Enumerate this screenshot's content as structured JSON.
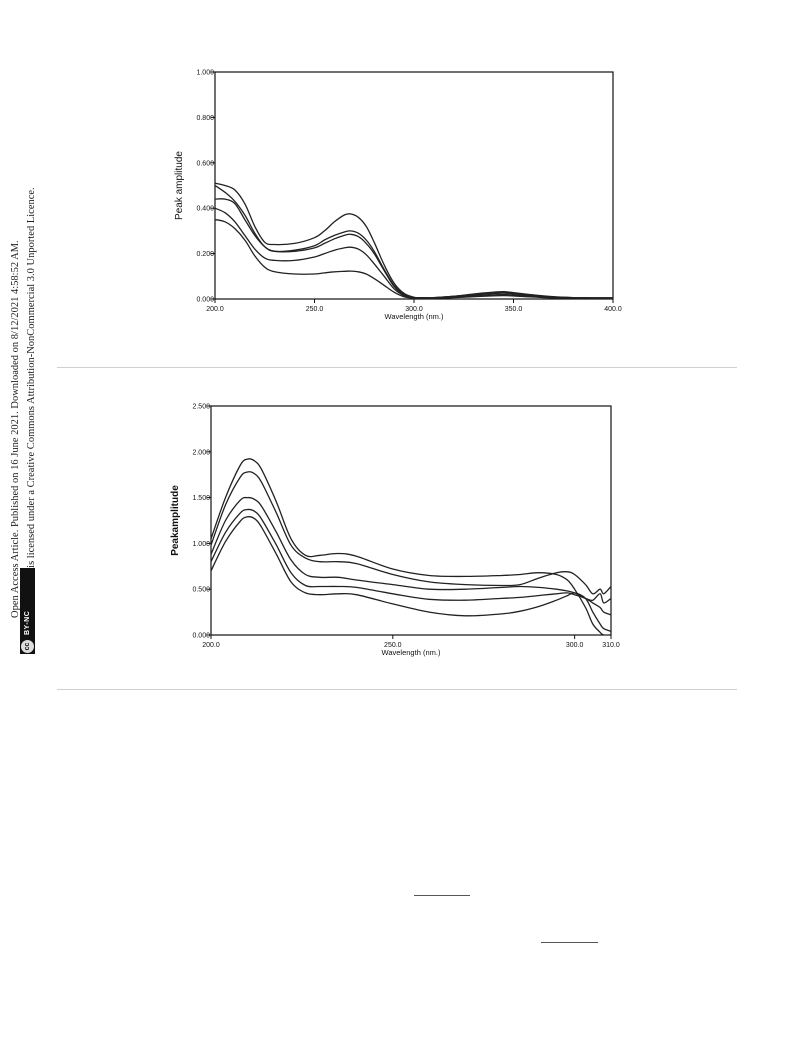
{
  "sidebar": {
    "line1": "Open Access Article. Published on 16 June 2021. Downloaded on 8/12/2021 4:58:52 AM.",
    "line2": "This article is licensed under a Creative Commons Attribution-NonCommercial 3.0 Unported Licence.",
    "badge_cc": "cc",
    "badge_label": "BY-NC"
  },
  "chart_data": [
    {
      "type": "line",
      "xlabel": "Wavelength (nm.)",
      "ylabel": "Peak amplitude",
      "xlim": [
        200,
        400
      ],
      "ylim": [
        0,
        1
      ],
      "xticks": [
        "200.0",
        "250.0",
        "300.0",
        "350.0",
        "400.0"
      ],
      "yticks": [
        "0.000",
        "0.200",
        "0.400",
        "0.600",
        "0.800",
        "1.000"
      ],
      "grid": false,
      "series": [
        {
          "x": [
            200,
            205,
            210,
            215,
            220,
            225,
            230,
            240,
            250,
            255,
            260,
            265,
            268,
            272,
            276,
            280,
            285,
            290,
            295,
            300,
            305,
            310,
            320,
            330,
            340,
            345,
            350,
            360,
            370,
            380,
            390,
            400
          ],
          "values": [
            0.51,
            0.5,
            0.48,
            0.42,
            0.32,
            0.25,
            0.24,
            0.245,
            0.27,
            0.3,
            0.34,
            0.37,
            0.375,
            0.36,
            0.32,
            0.25,
            0.15,
            0.07,
            0.025,
            0.008,
            0.006,
            0.006,
            0.012,
            0.022,
            0.03,
            0.032,
            0.028,
            0.018,
            0.01,
            0.006,
            0.005,
            0.005
          ]
        },
        {
          "x": [
            200,
            205,
            210,
            215,
            220,
            225,
            230,
            240,
            250,
            255,
            260,
            265,
            268,
            272,
            276,
            280,
            285,
            290,
            295,
            300,
            305,
            310,
            320,
            330,
            340,
            345,
            350,
            360,
            370,
            380,
            390,
            400
          ],
          "values": [
            0.5,
            0.47,
            0.43,
            0.37,
            0.29,
            0.23,
            0.21,
            0.215,
            0.235,
            0.26,
            0.28,
            0.295,
            0.3,
            0.29,
            0.26,
            0.21,
            0.13,
            0.06,
            0.02,
            0.006,
            0.005,
            0.006,
            0.012,
            0.02,
            0.026,
            0.028,
            0.025,
            0.016,
            0.009,
            0.006,
            0.005,
            0.005
          ]
        },
        {
          "x": [
            200,
            205,
            210,
            215,
            220,
            225,
            230,
            240,
            250,
            255,
            260,
            265,
            268,
            272,
            276,
            280,
            285,
            290,
            295,
            300,
            305,
            310,
            320,
            330,
            340,
            345,
            350,
            360,
            370,
            380,
            390,
            400
          ],
          "values": [
            0.44,
            0.44,
            0.42,
            0.35,
            0.28,
            0.23,
            0.21,
            0.21,
            0.225,
            0.245,
            0.265,
            0.28,
            0.285,
            0.275,
            0.245,
            0.2,
            0.125,
            0.055,
            0.018,
            0.006,
            0.005,
            0.005,
            0.01,
            0.018,
            0.024,
            0.026,
            0.022,
            0.014,
            0.008,
            0.005,
            0.005,
            0.005
          ]
        },
        {
          "x": [
            200,
            205,
            210,
            215,
            220,
            225,
            230,
            240,
            250,
            255,
            260,
            265,
            268,
            272,
            276,
            280,
            285,
            290,
            295,
            300,
            305,
            310,
            320,
            330,
            340,
            345,
            350,
            360,
            370,
            380,
            390,
            400
          ],
          "values": [
            0.4,
            0.38,
            0.34,
            0.28,
            0.22,
            0.18,
            0.17,
            0.17,
            0.185,
            0.2,
            0.215,
            0.225,
            0.228,
            0.22,
            0.195,
            0.155,
            0.1,
            0.045,
            0.015,
            0.005,
            0.004,
            0.004,
            0.008,
            0.014,
            0.018,
            0.02,
            0.017,
            0.011,
            0.007,
            0.005,
            0.004,
            0.004
          ]
        },
        {
          "x": [
            200,
            205,
            210,
            215,
            220,
            225,
            230,
            240,
            250,
            255,
            260,
            265,
            268,
            272,
            276,
            280,
            285,
            290,
            295,
            300,
            305,
            310,
            320,
            330,
            340,
            345,
            350,
            360,
            370,
            380,
            390,
            400
          ],
          "values": [
            0.35,
            0.34,
            0.31,
            0.26,
            0.19,
            0.14,
            0.12,
            0.11,
            0.11,
            0.115,
            0.12,
            0.122,
            0.123,
            0.12,
            0.11,
            0.09,
            0.06,
            0.03,
            0.01,
            0.004,
            0.003,
            0.003,
            0.006,
            0.01,
            0.014,
            0.015,
            0.013,
            0.009,
            0.005,
            0.004,
            0.003,
            0.003
          ]
        }
      ]
    },
    {
      "type": "line",
      "xlabel": "Wavelength (nm.)",
      "ylabel": "Peakamplitude",
      "xlim": [
        200,
        310
      ],
      "ylim": [
        0,
        2.5
      ],
      "xticks": [
        "200.0",
        "250.0",
        "300.0",
        "310.0"
      ],
      "xtick_values": [
        200,
        250,
        300,
        310
      ],
      "yticks": [
        "0.000",
        "0.500",
        "1.000",
        "1.500",
        "2.000",
        "2.500"
      ],
      "grid": false,
      "series": [
        {
          "x": [
            200,
            204,
            208,
            210,
            212,
            214,
            218,
            222,
            226,
            230,
            235,
            240,
            250,
            260,
            270,
            280,
            285,
            290,
            295,
            298,
            300,
            303,
            305,
            307,
            308,
            310
          ],
          "values": [
            1.05,
            1.5,
            1.85,
            1.92,
            1.9,
            1.8,
            1.45,
            1.05,
            0.87,
            0.87,
            0.89,
            0.86,
            0.72,
            0.65,
            0.64,
            0.65,
            0.66,
            0.68,
            0.66,
            0.6,
            0.5,
            0.3,
            0.12,
            0.03,
            0.0,
            0.0
          ]
        },
        {
          "x": [
            200,
            204,
            208,
            210,
            212,
            214,
            218,
            222,
            226,
            230,
            235,
            240,
            250,
            260,
            270,
            280,
            285,
            290,
            295,
            298,
            300,
            303,
            305,
            307,
            308,
            310
          ],
          "values": [
            0.98,
            1.42,
            1.72,
            1.78,
            1.76,
            1.66,
            1.33,
            0.98,
            0.84,
            0.8,
            0.8,
            0.78,
            0.66,
            0.58,
            0.55,
            0.54,
            0.55,
            0.62,
            0.68,
            0.69,
            0.66,
            0.55,
            0.45,
            0.5,
            0.45,
            0.53
          ]
        },
        {
          "x": [
            200,
            204,
            208,
            210,
            212,
            214,
            218,
            222,
            226,
            230,
            235,
            240,
            250,
            260,
            270,
            280,
            285,
            290,
            295,
            298,
            300,
            303,
            305,
            307,
            308,
            310
          ],
          "values": [
            0.88,
            1.25,
            1.47,
            1.5,
            1.48,
            1.4,
            1.12,
            0.82,
            0.66,
            0.63,
            0.63,
            0.6,
            0.55,
            0.5,
            0.5,
            0.52,
            0.53,
            0.52,
            0.5,
            0.48,
            0.46,
            0.4,
            0.38,
            0.45,
            0.35,
            0.4
          ]
        },
        {
          "x": [
            200,
            204,
            208,
            210,
            212,
            214,
            218,
            222,
            226,
            230,
            235,
            240,
            250,
            260,
            270,
            280,
            285,
            290,
            295,
            298,
            300,
            303,
            305,
            307,
            308,
            310
          ],
          "values": [
            0.8,
            1.12,
            1.33,
            1.37,
            1.35,
            1.26,
            0.98,
            0.68,
            0.54,
            0.53,
            0.53,
            0.52,
            0.45,
            0.39,
            0.38,
            0.4,
            0.41,
            0.43,
            0.45,
            0.46,
            0.44,
            0.4,
            0.35,
            0.3,
            0.25,
            0.22
          ]
        },
        {
          "x": [
            200,
            204,
            208,
            210,
            212,
            214,
            218,
            222,
            226,
            230,
            235,
            240,
            250,
            260,
            270,
            280,
            285,
            290,
            295,
            298,
            300,
            303,
            305,
            307,
            308,
            310
          ],
          "values": [
            0.7,
            1.02,
            1.24,
            1.29,
            1.27,
            1.17,
            0.88,
            0.58,
            0.46,
            0.44,
            0.45,
            0.44,
            0.34,
            0.25,
            0.21,
            0.23,
            0.26,
            0.31,
            0.38,
            0.43,
            0.46,
            0.4,
            0.25,
            0.12,
            0.07,
            0.04
          ]
        }
      ]
    }
  ]
}
